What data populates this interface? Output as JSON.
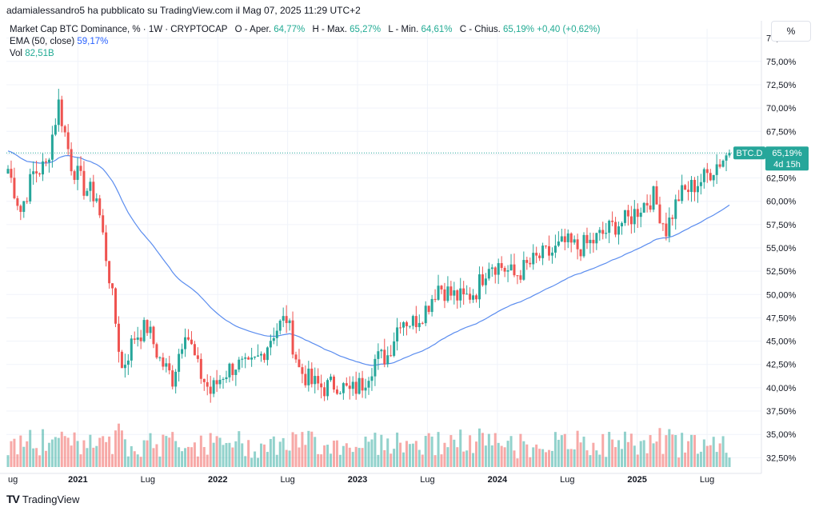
{
  "attribution": "adamialessandro5 ha pubblicato su TradingView.com il Mag 07, 2025 11:29 UTC+2",
  "legend": {
    "title": "Market Cap BTC Dominance, % · 1W · CRYPTOCAP",
    "open_label": "O - Aper.",
    "open_value": "64,77%",
    "high_label": "H - Max.",
    "high_value": "65,27%",
    "low_label": "L - Min.",
    "low_value": "64,61%",
    "close_label": "C - Chius.",
    "close_value": "65,19%",
    "change": "+0,40 (+0,62%)",
    "ema_label": "EMA (50, close)",
    "ema_value": "59,17%",
    "vol_label": "Vol",
    "vol_value": "82,51B"
  },
  "scale_button": "%",
  "price_tag": {
    "symbol": "BTC.D",
    "value": "65,19%",
    "countdown": "4d 15h"
  },
  "footer": {
    "logo_text": "TV",
    "brand": "TradingView"
  },
  "colors": {
    "up": "#26a69a",
    "down": "#ef5350",
    "ema": "#5b8def",
    "grid": "#f0f3fa",
    "axis_text": "#131722"
  },
  "chart_data": {
    "type": "candlestick",
    "title": "Market Cap BTC Dominance, % · 1W · CRYPTOCAP",
    "y_axis_ticks": [
      "77,50%",
      "75,00%",
      "72,50%",
      "70,00%",
      "67,50%",
      "65,00%",
      "62,50%",
      "60,00%",
      "57,50%",
      "55,00%",
      "52,50%",
      "50,00%",
      "47,50%",
      "45,00%",
      "42,50%",
      "40,00%",
      "37,50%",
      "35,00%",
      "32,50%"
    ],
    "x_axis_ticks": [
      "ug",
      "2021",
      "Lug",
      "2022",
      "Lug",
      "2023",
      "Lug",
      "2024",
      "Lug",
      "2025",
      "Lug"
    ],
    "ylim": [
      31.5,
      78.5
    ],
    "x_start": "2020-08",
    "x_end": "2025-08",
    "ema_period": 50,
    "close_series": [
      {
        "date": "2020-08",
        "close": 63.5
      },
      {
        "date": "2020-09",
        "close": 59.0
      },
      {
        "date": "2020-10",
        "close": 63.0
      },
      {
        "date": "2020-11",
        "close": 63.8
      },
      {
        "date": "2020-12",
        "close": 70.5
      },
      {
        "date": "2021-01",
        "close": 64.0
      },
      {
        "date": "2021-02",
        "close": 61.5
      },
      {
        "date": "2021-03",
        "close": 60.5
      },
      {
        "date": "2021-04",
        "close": 52.0
      },
      {
        "date": "2021-05",
        "close": 42.0
      },
      {
        "date": "2021-06",
        "close": 45.5
      },
      {
        "date": "2021-07",
        "close": 46.5
      },
      {
        "date": "2021-08",
        "close": 43.0
      },
      {
        "date": "2021-09",
        "close": 41.0
      },
      {
        "date": "2021-10",
        "close": 46.5
      },
      {
        "date": "2021-11",
        "close": 42.0
      },
      {
        "date": "2021-12",
        "close": 39.5
      },
      {
        "date": "2022-01",
        "close": 41.5
      },
      {
        "date": "2022-02",
        "close": 42.5
      },
      {
        "date": "2022-03",
        "close": 42.0
      },
      {
        "date": "2022-04",
        "close": 43.5
      },
      {
        "date": "2022-05",
        "close": 46.0
      },
      {
        "date": "2022-06",
        "close": 47.5
      },
      {
        "date": "2022-07",
        "close": 42.0
      },
      {
        "date": "2022-08",
        "close": 40.5
      },
      {
        "date": "2022-09",
        "close": 40.0
      },
      {
        "date": "2022-10",
        "close": 40.5
      },
      {
        "date": "2022-11",
        "close": 39.5
      },
      {
        "date": "2022-12",
        "close": 40.5
      },
      {
        "date": "2023-01",
        "close": 43.0
      },
      {
        "date": "2023-02",
        "close": 43.5
      },
      {
        "date": "2023-03",
        "close": 47.5
      },
      {
        "date": "2023-04",
        "close": 47.0
      },
      {
        "date": "2023-05",
        "close": 48.5
      },
      {
        "date": "2023-06",
        "close": 51.0
      },
      {
        "date": "2023-07",
        "close": 50.0
      },
      {
        "date": "2023-08",
        "close": 49.5
      },
      {
        "date": "2023-09",
        "close": 50.5
      },
      {
        "date": "2023-10",
        "close": 53.5
      },
      {
        "date": "2023-11",
        "close": 53.0
      },
      {
        "date": "2023-12",
        "close": 52.0
      },
      {
        "date": "2024-01",
        "close": 53.0
      },
      {
        "date": "2024-02",
        "close": 54.0
      },
      {
        "date": "2024-03",
        "close": 54.5
      },
      {
        "date": "2024-04",
        "close": 55.5
      },
      {
        "date": "2024-05",
        "close": 55.0
      },
      {
        "date": "2024-06",
        "close": 55.5
      },
      {
        "date": "2024-07",
        "close": 56.5
      },
      {
        "date": "2024-08",
        "close": 57.5
      },
      {
        "date": "2024-09",
        "close": 58.0
      },
      {
        "date": "2024-10",
        "close": 59.5
      },
      {
        "date": "2024-11",
        "close": 60.5
      },
      {
        "date": "2024-12",
        "close": 57.0
      },
      {
        "date": "2025-01",
        "close": 60.5
      },
      {
        "date": "2025-02",
        "close": 61.5
      },
      {
        "date": "2025-03",
        "close": 62.5
      },
      {
        "date": "2025-04",
        "close": 64.0
      },
      {
        "date": "2025-05",
        "close": 65.19
      }
    ]
  }
}
